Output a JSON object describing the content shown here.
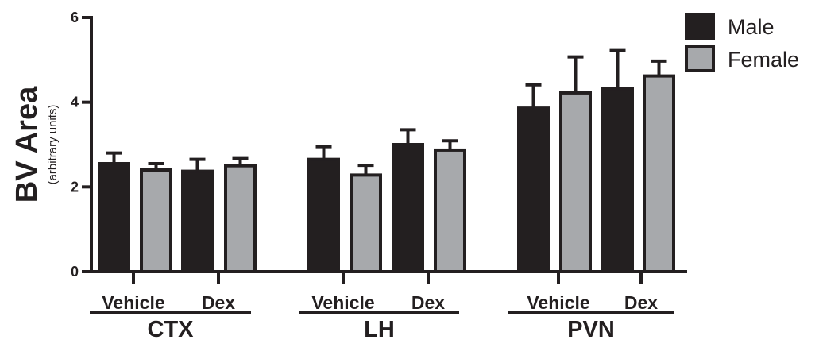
{
  "chart_data": {
    "type": "bar",
    "ylabel": "BV Area",
    "ylabel_sub": "(arbitrary units)",
    "ylim": [
      0,
      6
    ],
    "yticks": [
      "0",
      "2",
      "4",
      "6"
    ],
    "grid": false,
    "legend_position": "top-right",
    "colors": {
      "Male": "#231f20",
      "Female": "#a7a9ac",
      "axis": "#231f20"
    },
    "series": [
      {
        "name": "Male"
      },
      {
        "name": "Female"
      }
    ],
    "regions": [
      {
        "name": "CTX",
        "conditions": [
          {
            "label": "Vehicle",
            "male": {
              "mean": 2.55,
              "err": 0.25
            },
            "female": {
              "mean": 2.4,
              "err": 0.15
            }
          },
          {
            "label": "Dex",
            "male": {
              "mean": 2.37,
              "err": 0.28
            },
            "female": {
              "mean": 2.5,
              "err": 0.17
            }
          }
        ]
      },
      {
        "name": "LH",
        "conditions": [
          {
            "label": "Vehicle",
            "male": {
              "mean": 2.65,
              "err": 0.3
            },
            "female": {
              "mean": 2.28,
              "err": 0.23
            }
          },
          {
            "label": "Dex",
            "male": {
              "mean": 3.0,
              "err": 0.35
            },
            "female": {
              "mean": 2.87,
              "err": 0.22
            }
          }
        ]
      },
      {
        "name": "PVN",
        "conditions": [
          {
            "label": "Vehicle",
            "male": {
              "mean": 3.86,
              "err": 0.55
            },
            "female": {
              "mean": 4.22,
              "err": 0.85
            }
          },
          {
            "label": "Dex",
            "male": {
              "mean": 4.32,
              "err": 0.9
            },
            "female": {
              "mean": 4.62,
              "err": 0.35
            }
          }
        ]
      }
    ]
  }
}
